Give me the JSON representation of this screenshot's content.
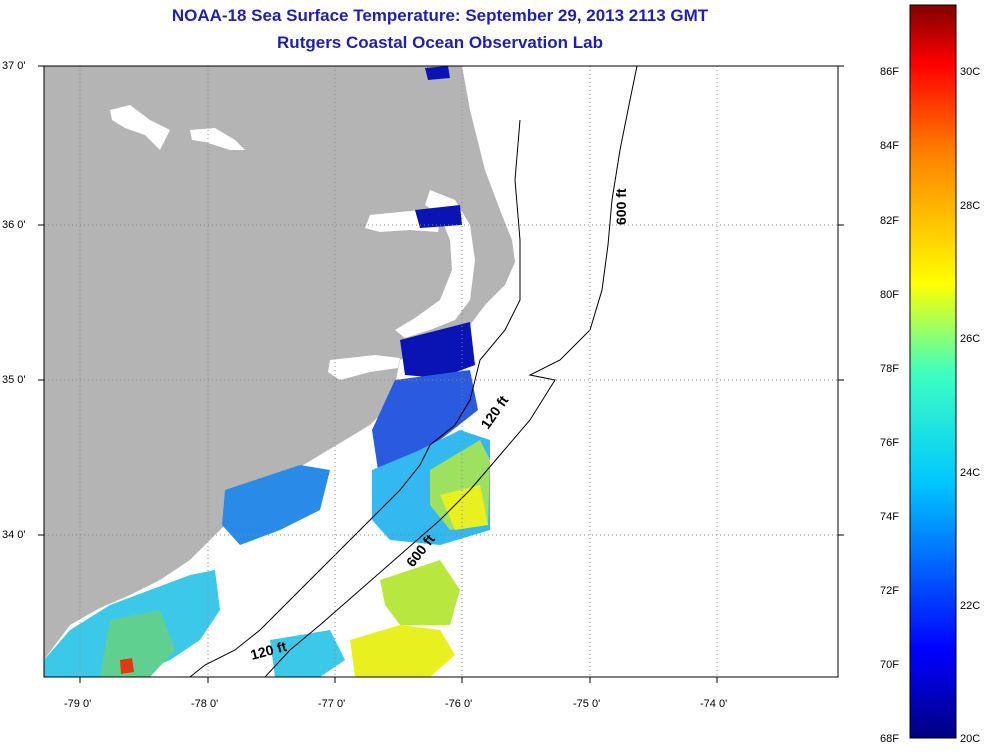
{
  "title": {
    "line1": "NOAA-18 Sea Surface Temperature:  September 29, 2013 2113 GMT",
    "line2": "Rutgers Coastal Ocean Observation Lab"
  },
  "map": {
    "lon_ticks": [
      "-79 0'",
      "-78 0'",
      "-77 0'",
      "-76 0'",
      "-75 0'",
      "-74 0'"
    ],
    "lat_ticks": [
      "37 0'",
      "36 0'",
      "35 0'",
      "34 0'"
    ],
    "contour_labels": [
      "600 ft",
      "120 ft",
      "600 ft",
      "120 ft"
    ]
  },
  "colorbar": {
    "fahrenheit": [
      "86F",
      "84F",
      "82F",
      "80F",
      "78F",
      "76F",
      "74F",
      "72F",
      "70F",
      "68F"
    ],
    "celsius": [
      "30C",
      "28C",
      "26C",
      "24C",
      "22C",
      "20C"
    ]
  },
  "colors": {
    "title": "#1f1fb0",
    "land": "#b4b4b4",
    "water": "#ffffff"
  }
}
